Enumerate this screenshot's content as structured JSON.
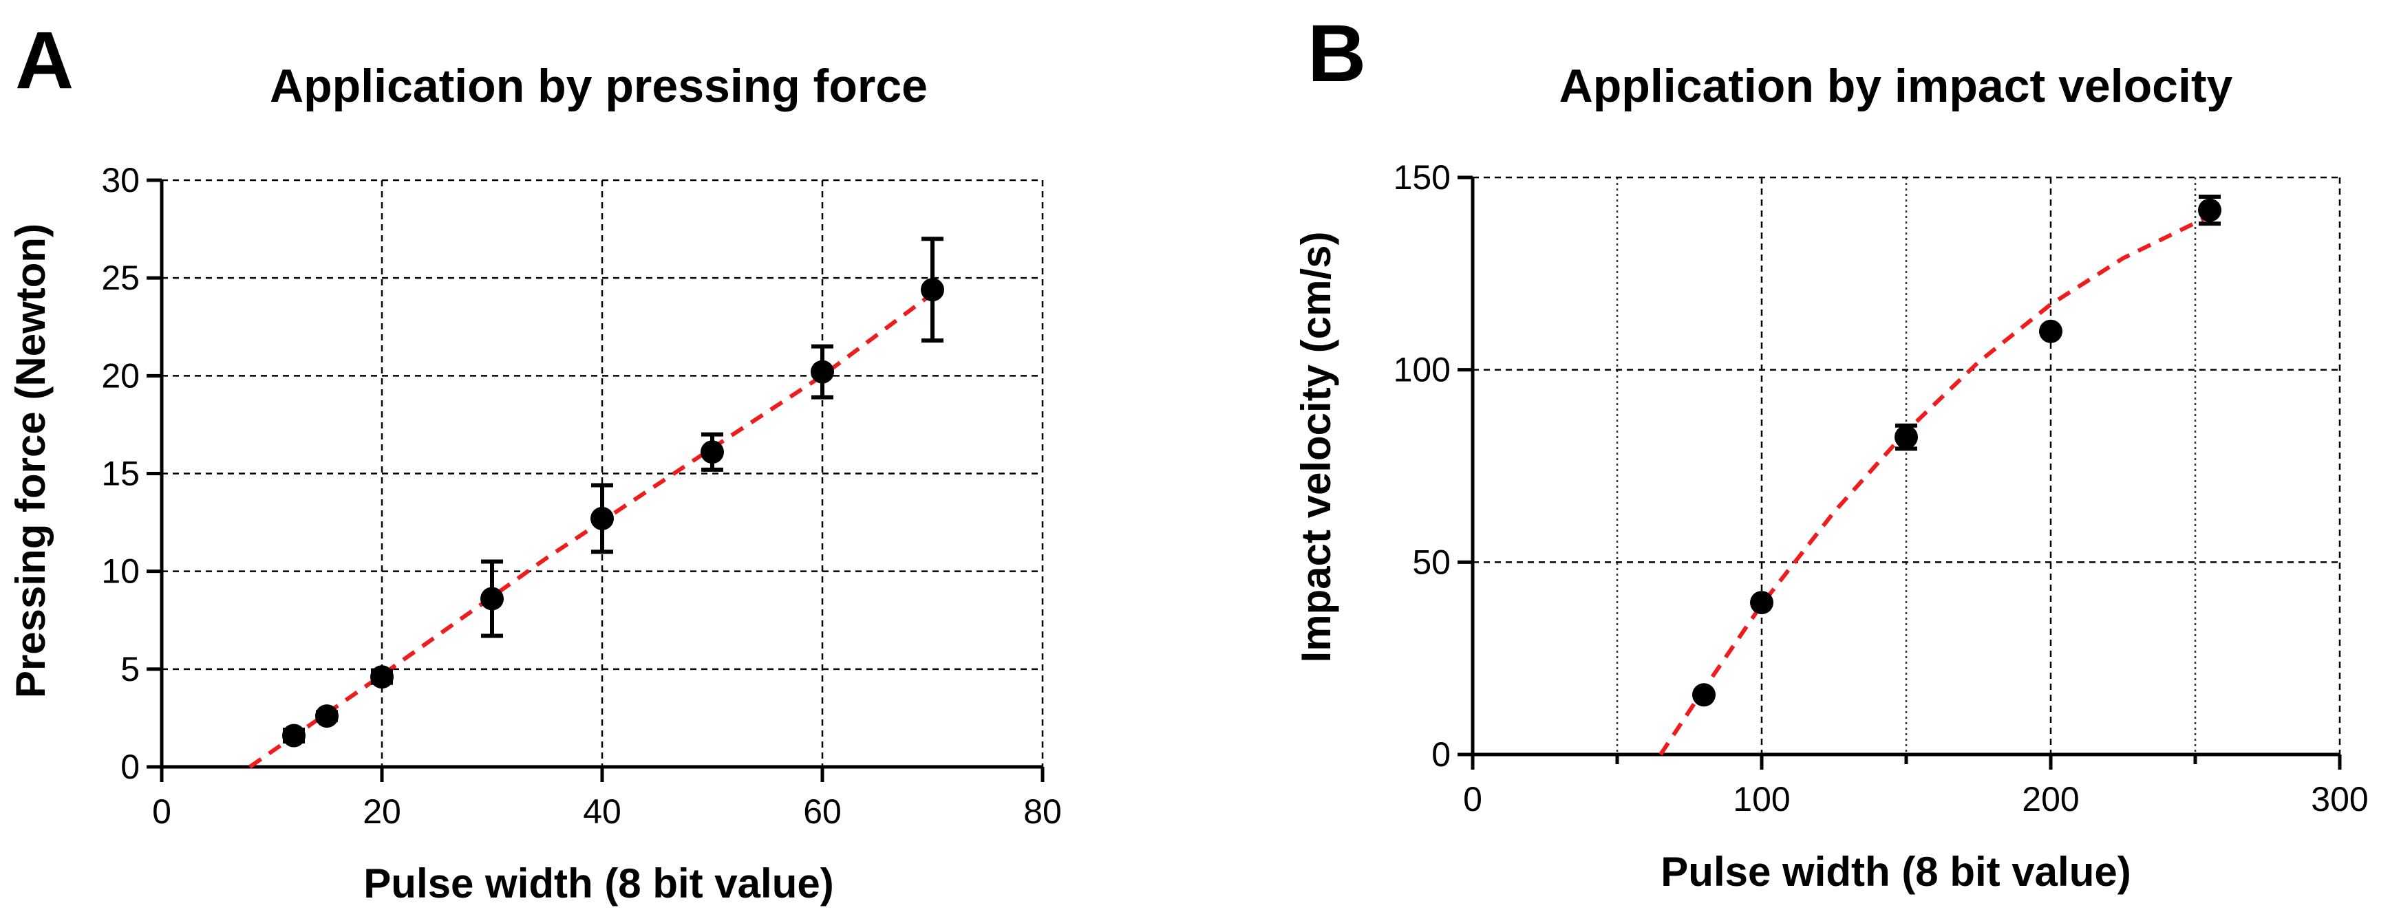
{
  "chart_data": [
    {
      "type": "scatter",
      "panel": "A",
      "title": "Application by pressing force",
      "xlabel": "Pulse width (8 bit value)",
      "ylabel": "Pressing force (Newton)",
      "xlim": [
        0,
        80
      ],
      "ylim": [
        0,
        30
      ],
      "xticks": [
        0,
        20,
        40,
        60,
        80
      ],
      "yticks": [
        0,
        5,
        10,
        15,
        20,
        25,
        30
      ],
      "grid": "dashed",
      "series": [
        {
          "name": "measured",
          "points": [
            {
              "x": 12,
              "y": 1.6,
              "err": 0.3
            },
            {
              "x": 15,
              "y": 2.6,
              "err": 0.2
            },
            {
              "x": 20,
              "y": 4.6,
              "err": 0.3
            },
            {
              "x": 30,
              "y": 8.6,
              "err": 1.9
            },
            {
              "x": 40,
              "y": 12.7,
              "err": 1.7
            },
            {
              "x": 50,
              "y": 16.1,
              "err": 0.9
            },
            {
              "x": 60,
              "y": 20.2,
              "err": 1.3
            },
            {
              "x": 70,
              "y": 24.4,
              "err": 2.6
            }
          ]
        }
      ],
      "fit": {
        "name": "fit",
        "color": "#ee1c1c",
        "points": [
          [
            8,
            0
          ],
          [
            20,
            4.7
          ],
          [
            35,
            10.7
          ],
          [
            50,
            16.3
          ],
          [
            60,
            20.0
          ],
          [
            70,
            24.2
          ]
        ]
      }
    },
    {
      "type": "scatter",
      "panel": "B",
      "title": "Application by impact velocity",
      "xlabel": "Pulse width (8 bit value)",
      "ylabel": "Impact velocity (cm/s)",
      "xlim": [
        0,
        300
      ],
      "ylim": [
        0,
        150
      ],
      "xticks": [
        0,
        100,
        200,
        300
      ],
      "yticks": [
        0,
        50,
        100,
        150
      ],
      "grid": "dashed major, dotted minor",
      "series": [
        {
          "name": "measured",
          "points": [
            {
              "x": 80,
              "y": 15.5,
              "err": 0
            },
            {
              "x": 100,
              "y": 39.5,
              "err": 0
            },
            {
              "x": 150,
              "y": 82.5,
              "err": 3
            },
            {
              "x": 200,
              "y": 110,
              "err": 0
            },
            {
              "x": 255,
              "y": 141.5,
              "err": 3.5
            }
          ]
        }
      ],
      "fit": {
        "name": "fit",
        "color": "#ee1c1c",
        "points": [
          [
            65,
            0
          ],
          [
            80,
            17
          ],
          [
            100,
            39
          ],
          [
            125,
            63
          ],
          [
            150,
            84
          ],
          [
            175,
            102
          ],
          [
            200,
            117
          ],
          [
            225,
            129
          ],
          [
            255,
            140
          ]
        ]
      }
    }
  ]
}
